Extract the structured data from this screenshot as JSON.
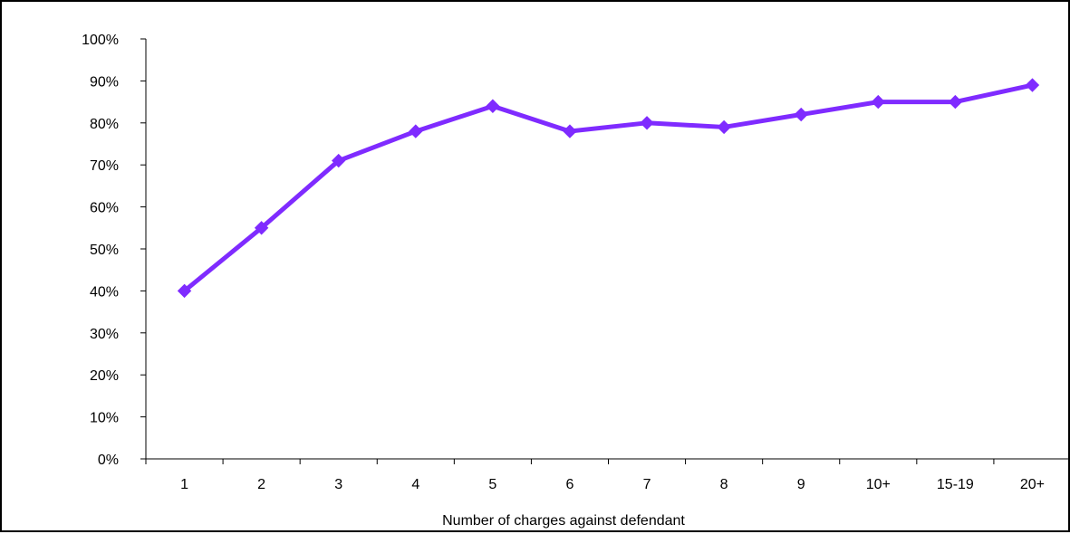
{
  "chart_data": {
    "type": "line",
    "title": "",
    "xlabel": "Number of charges against defendant",
    "ylabel": "",
    "categories": [
      "1",
      "2",
      "3",
      "4",
      "5",
      "6",
      "7",
      "8",
      "9",
      "10+",
      "15-19",
      "20+"
    ],
    "series": [
      {
        "values": [
          0.4,
          0.55,
          0.71,
          0.78,
          0.84,
          0.78,
          0.8,
          0.79,
          0.82,
          0.85,
          0.85,
          0.89
        ],
        "color": "#7F2BFF",
        "marker": "diamond"
      }
    ],
    "ylim": [
      0,
      1
    ],
    "yticks": [
      0,
      0.1,
      0.2,
      0.3,
      0.4,
      0.5,
      0.6,
      0.7,
      0.8,
      0.9,
      1.0
    ],
    "ytick_labels": [
      "0%",
      "10%",
      "20%",
      "30%",
      "40%",
      "50%",
      "60%",
      "70%",
      "80%",
      "90%",
      "100%"
    ],
    "grid": false,
    "legend": "none"
  }
}
